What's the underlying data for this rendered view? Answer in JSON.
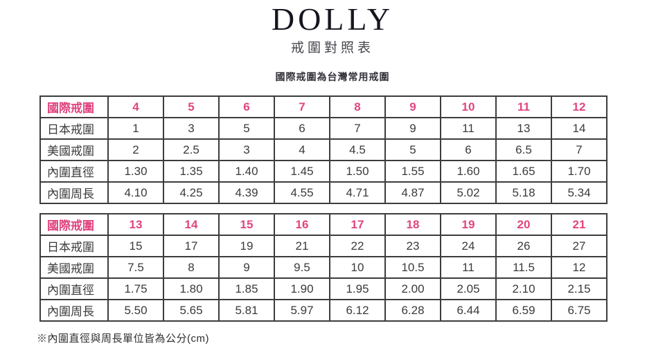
{
  "header": {
    "brand": "DOLLY",
    "title": "戒圍對照表",
    "subtitle": "國際戒圍為台灣常用戒圍"
  },
  "colors": {
    "accent_pink": "#e0457f",
    "border": "#3c3c3c",
    "text": "#3a3a3a"
  },
  "tables": [
    {
      "rows": [
        {
          "label": "國際戒圍",
          "highlight": true,
          "values": [
            "4",
            "5",
            "6",
            "7",
            "8",
            "9",
            "10",
            "11",
            "12"
          ]
        },
        {
          "label": "日本戒圍",
          "highlight": false,
          "values": [
            "1",
            "3",
            "5",
            "6",
            "7",
            "9",
            "11",
            "13",
            "14"
          ]
        },
        {
          "label": "美國戒圍",
          "highlight": false,
          "values": [
            "2",
            "2.5",
            "3",
            "4",
            "4.5",
            "5",
            "6",
            "6.5",
            "7"
          ]
        },
        {
          "label": "內圍直徑",
          "highlight": false,
          "values": [
            "1.30",
            "1.35",
            "1.40",
            "1.45",
            "1.50",
            "1.55",
            "1.60",
            "1.65",
            "1.70"
          ]
        },
        {
          "label": "內圍周長",
          "highlight": false,
          "values": [
            "4.10",
            "4.25",
            "4.39",
            "4.55",
            "4.71",
            "4.87",
            "5.02",
            "5.18",
            "5.34"
          ]
        }
      ]
    },
    {
      "rows": [
        {
          "label": "國際戒圍",
          "highlight": true,
          "values": [
            "13",
            "14",
            "15",
            "16",
            "17",
            "18",
            "19",
            "20",
            "21"
          ]
        },
        {
          "label": "日本戒圍",
          "highlight": false,
          "values": [
            "15",
            "17",
            "19",
            "21",
            "22",
            "23",
            "24",
            "26",
            "27"
          ]
        },
        {
          "label": "美國戒圍",
          "highlight": false,
          "values": [
            "7.5",
            "8",
            "9",
            "9.5",
            "10",
            "10.5",
            "11",
            "11.5",
            "12"
          ]
        },
        {
          "label": "內圍直徑",
          "highlight": false,
          "values": [
            "1.75",
            "1.80",
            "1.85",
            "1.90",
            "1.95",
            "2.00",
            "2.05",
            "2.10",
            "2.15"
          ]
        },
        {
          "label": "內圍周長",
          "highlight": false,
          "values": [
            "5.50",
            "5.65",
            "5.81",
            "5.97",
            "6.12",
            "6.28",
            "6.44",
            "6.59",
            "6.75"
          ]
        }
      ]
    }
  ],
  "footnote": "※內圍直徑與周長單位皆為公分(cm)"
}
